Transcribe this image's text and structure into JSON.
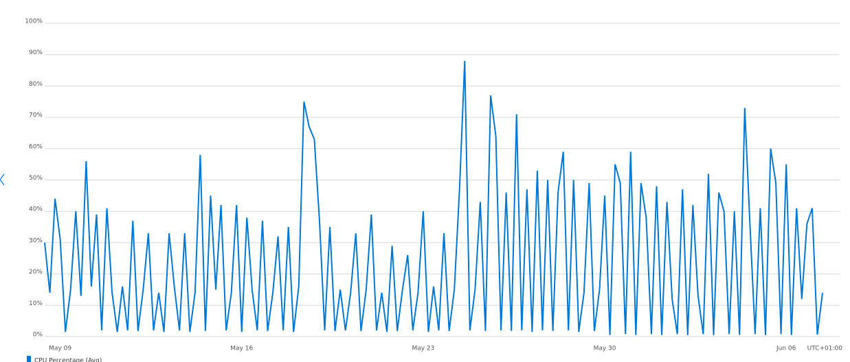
{
  "chart_data": {
    "type": "line",
    "categories": [
      null,
      null,
      null,
      "May 09",
      null,
      null,
      null,
      null,
      null,
      null,
      null,
      null,
      null,
      null,
      null,
      null,
      null,
      null,
      null,
      null,
      null,
      null,
      null,
      null,
      null,
      null,
      null,
      null,
      null,
      null,
      null,
      null,
      null,
      null,
      null,
      null,
      null,
      null,
      "May 16",
      null,
      null,
      null,
      null,
      null,
      null,
      null,
      null,
      null,
      null,
      null,
      null,
      null,
      null,
      null,
      null,
      null,
      null,
      null,
      null,
      null,
      null,
      null,
      null,
      null,
      null,
      null,
      null,
      null,
      null,
      null,
      null,
      null,
      null,
      "May 23",
      null,
      null,
      null,
      null,
      null,
      null,
      null,
      null,
      null,
      null,
      null,
      null,
      null,
      null,
      null,
      null,
      null,
      null,
      null,
      null,
      null,
      null,
      null,
      null,
      null,
      null,
      null,
      null,
      null,
      null,
      null,
      null,
      null,
      null,
      "May 30",
      null,
      null,
      null,
      null,
      null,
      null,
      null,
      null,
      null,
      null,
      null,
      null,
      null,
      null,
      null,
      null,
      null,
      null,
      null,
      null,
      null,
      null,
      null,
      null,
      null,
      null,
      null,
      null,
      null,
      null,
      null,
      null,
      null,
      null,
      "Jun 06",
      null,
      null,
      null,
      null,
      null,
      null,
      null
    ],
    "series": [
      {
        "name": "CPU Percentage (Avg)",
        "color": "#0078d4",
        "values": [
          30,
          14,
          44,
          31,
          1.5,
          15,
          40,
          13,
          56,
          16,
          39,
          2,
          41,
          14,
          1.5,
          16,
          2,
          37,
          1.8,
          15,
          33,
          2,
          14,
          1.5,
          33,
          16,
          2,
          33,
          1.5,
          14,
          58,
          1.8,
          45,
          15,
          42,
          2,
          14,
          42,
          1.5,
          38,
          15,
          2,
          37,
          1.8,
          14,
          32,
          2,
          35,
          1.5,
          16,
          75,
          67,
          63,
          37,
          2,
          35,
          1.8,
          15,
          2,
          14,
          33,
          1.8,
          15,
          39,
          2,
          14,
          1.5,
          29,
          1.8,
          15,
          26,
          2,
          14,
          40,
          1.5,
          16,
          2,
          33,
          1.8,
          15,
          47,
          88,
          2,
          15,
          43,
          1.8,
          77,
          64,
          2,
          46,
          1.8,
          71,
          2,
          47,
          1.5,
          53,
          2,
          50,
          1.8,
          46,
          59,
          2,
          50,
          1.5,
          14,
          49,
          1.8,
          15,
          45,
          0.5,
          55,
          49,
          0.8,
          59,
          0.5,
          49,
          38,
          0.8,
          48,
          0.5,
          43,
          12,
          0.8,
          47,
          0.5,
          42,
          13,
          0.8,
          52,
          0.5,
          46,
          40,
          0.8,
          40,
          0.5,
          73,
          36,
          0.8,
          41,
          0.5,
          60,
          49,
          0.8,
          55,
          0.5,
          41,
          12,
          36,
          41,
          0.6,
          14
        ]
      }
    ],
    "ylim": [
      0,
      100
    ],
    "yticks": [
      {
        "value": 0,
        "label": "0%"
      },
      {
        "value": 10,
        "label": "10%"
      },
      {
        "value": 20,
        "label": "20%"
      },
      {
        "value": 30,
        "label": "30%"
      },
      {
        "value": 40,
        "label": "40%"
      },
      {
        "value": 50,
        "label": "50%"
      },
      {
        "value": 60,
        "label": "60%"
      },
      {
        "value": 70,
        "label": "70%"
      },
      {
        "value": 80,
        "label": "80%"
      },
      {
        "value": 90,
        "label": "90%"
      },
      {
        "value": 100,
        "label": "100%"
      }
    ],
    "grid": true,
    "timezone": "UTC+01:00"
  }
}
